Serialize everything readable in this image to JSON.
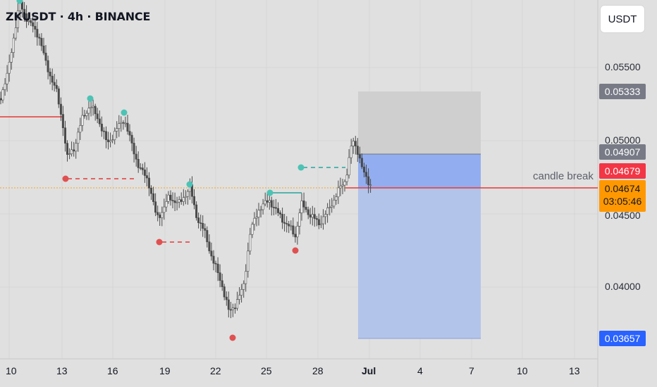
{
  "header": {
    "symbol_title": "ZKUSDT · 4h · BINANCE"
  },
  "currency_button": {
    "label": "USDT"
  },
  "price_axis": {
    "ticks": [
      "0.05500",
      "0.05000",
      "0.04500",
      "0.04000"
    ],
    "labels": {
      "target": {
        "text": "0.05333",
        "color": "#787b86"
      },
      "stop": {
        "text": "0.04907",
        "color": "#787b86"
      },
      "red": {
        "text": "0.04679",
        "color": "#f23645"
      },
      "bottom": {
        "text": "0.03657",
        "color": "#2962ff"
      }
    },
    "last_price": {
      "value": "0.04674",
      "countdown": "03:05:46",
      "color": "#ff9800"
    }
  },
  "annotation": {
    "candle_break": "candle break"
  },
  "time_axis": {
    "ticks": [
      "10",
      "13",
      "16",
      "19",
      "22",
      "25",
      "28",
      "Jul",
      "4",
      "7",
      "10",
      "13"
    ]
  },
  "colors": {
    "background": "#e0e0e0",
    "candle": "#4a4a4a",
    "red_line": "#f23645",
    "teal": "#26a69a",
    "marker_red": "#e05050",
    "marker_teal": "#4cc3b5",
    "position_gray": "#cfcfcf",
    "position_blue": "#7f9be6"
  },
  "icons": [
    "pivot-high-marker-icon",
    "pivot-low-marker-icon"
  ]
}
